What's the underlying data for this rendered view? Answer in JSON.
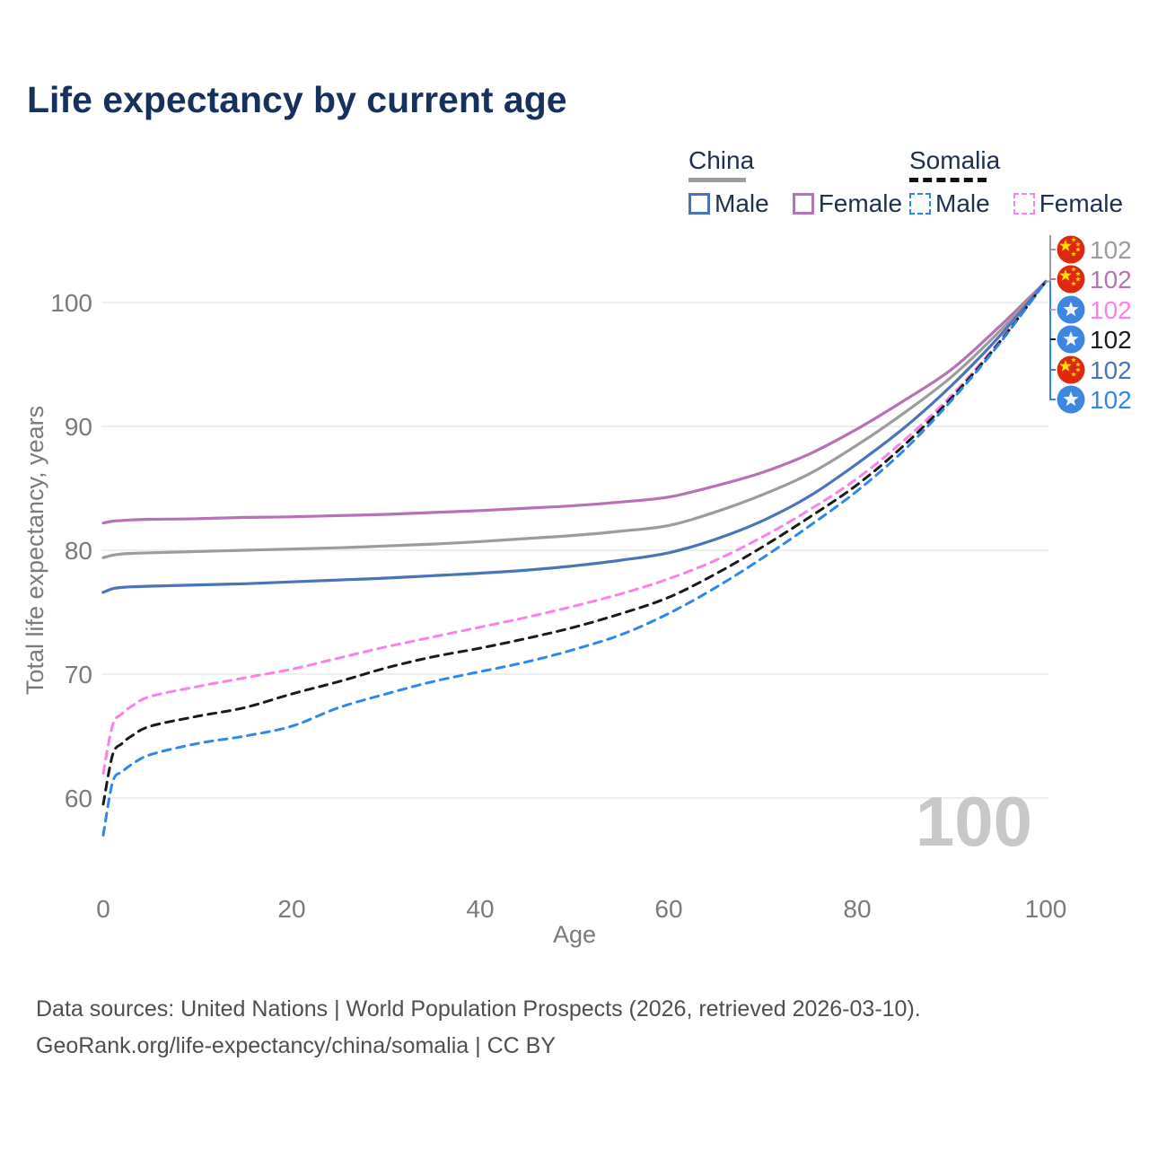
{
  "title": "Life expectancy by current age",
  "colors": {
    "title_text": "#16325c",
    "legend_text": "#1d3050",
    "axis_text": "#7a7a7a",
    "gridline": "#e8e8e8",
    "china_underline": "#9e9e9e",
    "somalia_underline": "#111111",
    "watermark": "#c8c8c8",
    "footer_text": "#4f4f4f",
    "china_flag_red": "#de2910",
    "china_flag_star": "#ffde00",
    "somalia_flag_blue": "#3d87e0",
    "somalia_flag_star": "#f2f4f8"
  },
  "legend": {
    "groups": [
      {
        "country": "China",
        "line_style": "solid",
        "items": [
          {
            "label": "Male",
            "color": "#4a74b8"
          },
          {
            "label": "Female",
            "color": "#b573b5"
          }
        ]
      },
      {
        "country": "Somalia",
        "line_style": "dashed",
        "items": [
          {
            "label": "Male",
            "color": "#2f87ea"
          },
          {
            "label": "Female",
            "color": "#fb80e8"
          }
        ]
      }
    ]
  },
  "chart_data": {
    "type": "line",
    "title": "Life expectancy by current age",
    "xlabel": "Age",
    "ylabel": "Total life expectancy, years",
    "xlim": [
      0,
      100
    ],
    "ylim": [
      56,
      104
    ],
    "xticks": [
      0,
      20,
      40,
      60,
      80,
      100
    ],
    "yticks": [
      60,
      70,
      80,
      90,
      100
    ],
    "grid": "horizontal-only",
    "legend_position": "top-right",
    "watermark_age": "100",
    "x": [
      0,
      1,
      2,
      3,
      5,
      10,
      15,
      20,
      25,
      30,
      35,
      40,
      45,
      50,
      55,
      60,
      65,
      70,
      75,
      80,
      85,
      90,
      95,
      100
    ],
    "series": [
      {
        "name": "China female",
        "country": "China",
        "sex": "Female",
        "color": "#b573b5",
        "dash": "solid",
        "values": [
          82.2,
          82.35,
          82.4,
          82.45,
          82.5,
          82.55,
          82.65,
          82.7,
          82.8,
          82.9,
          83.05,
          83.2,
          83.4,
          83.6,
          83.9,
          84.3,
          85.2,
          86.3,
          87.8,
          89.8,
          92.1,
          94.6,
          98.0,
          101.7
        ]
      },
      {
        "name": "China both sexes",
        "country": "China",
        "sex": "Both",
        "color": "#9c9c9c",
        "dash": "solid",
        "values": [
          79.4,
          79.6,
          79.7,
          79.75,
          79.8,
          79.9,
          80.0,
          80.1,
          80.2,
          80.35,
          80.5,
          80.7,
          80.95,
          81.2,
          81.55,
          82.0,
          83.1,
          84.5,
          86.2,
          88.5,
          91.1,
          94.0,
          97.6,
          101.7
        ]
      },
      {
        "name": "China male",
        "country": "China",
        "sex": "Male",
        "color": "#4a74b8",
        "dash": "solid",
        "values": [
          76.6,
          76.9,
          77.0,
          77.05,
          77.1,
          77.2,
          77.3,
          77.45,
          77.6,
          77.75,
          77.95,
          78.15,
          78.4,
          78.75,
          79.2,
          79.8,
          80.9,
          82.4,
          84.4,
          87.0,
          89.9,
          93.3,
          97.2,
          101.7
        ]
      },
      {
        "name": "Somalia female",
        "country": "Somalia",
        "sex": "Female",
        "color": "#fb80e8",
        "dash": "dashed",
        "values": [
          62.0,
          65.9,
          66.8,
          67.4,
          68.2,
          69.0,
          69.7,
          70.4,
          71.3,
          72.2,
          73.0,
          73.8,
          74.6,
          75.5,
          76.5,
          77.7,
          79.2,
          81.1,
          83.3,
          85.8,
          88.9,
          92.5,
          96.8,
          101.7
        ]
      },
      {
        "name": "Somalia both sexes",
        "country": "Somalia",
        "sex": "Both",
        "color": "#1a1a1a",
        "dash": "dashed",
        "values": [
          59.5,
          63.5,
          64.4,
          65.0,
          65.8,
          66.6,
          67.3,
          68.4,
          69.4,
          70.5,
          71.4,
          72.1,
          72.9,
          73.8,
          74.9,
          76.2,
          78.1,
          80.3,
          82.7,
          85.3,
          88.5,
          92.3,
          96.7,
          101.7
        ]
      },
      {
        "name": "Somalia male",
        "country": "Somalia",
        "sex": "Male",
        "color": "#2f87ea",
        "dash": "dashed",
        "values": [
          57.0,
          61.3,
          62.1,
          62.7,
          63.5,
          64.4,
          65.0,
          65.8,
          67.3,
          68.4,
          69.4,
          70.2,
          71.0,
          72.0,
          73.2,
          74.9,
          77.0,
          79.4,
          82.0,
          84.8,
          88.1,
          92.1,
          96.6,
          101.7
        ]
      }
    ],
    "end_labels": [
      {
        "flag": "china",
        "value": "102",
        "color": "#9c9c9c"
      },
      {
        "flag": "china",
        "value": "102",
        "color": "#b573b5"
      },
      {
        "flag": "somalia",
        "value": "102",
        "color": "#fb80e8"
      },
      {
        "flag": "somalia",
        "value": "102",
        "color": "#1a1a1a"
      },
      {
        "flag": "china",
        "value": "102",
        "color": "#4a74b8"
      },
      {
        "flag": "somalia",
        "value": "102",
        "color": "#2f87ea"
      }
    ]
  },
  "footer": {
    "line1": "Data sources: United Nations | World Population Prospects (2026, retrieved 2026-03-10).",
    "line2": "GeoRank.org/life-expectancy/china/somalia | CC BY"
  }
}
